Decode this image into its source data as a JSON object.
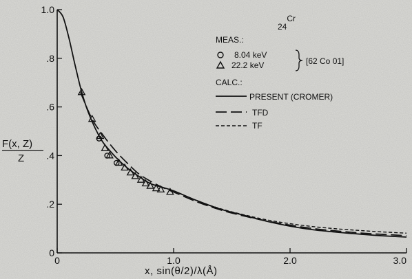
{
  "chart_data": {
    "type": "line",
    "element_label": {
      "sub": "24",
      "sup": "Cr"
    },
    "xlabel": "x, sin(θ/2)/λ(Å)",
    "ylabel": {
      "top": "F(x, Z)",
      "bottom": "Z"
    },
    "xlim": [
      0,
      3.0
    ],
    "ylim": [
      0,
      1.0
    ],
    "x_ticks": [
      0,
      1.0,
      2.0,
      3.0
    ],
    "x_tick_labels": [
      "0",
      "1.0",
      "2.0",
      "3.0"
    ],
    "y_ticks": [
      0,
      0.2,
      0.4,
      0.6,
      0.8,
      1.0
    ],
    "y_tick_labels": [
      "0",
      ".2",
      ".4",
      ".6",
      ".8",
      "1.0"
    ],
    "grid": false,
    "legend_position": "top-right",
    "legend": {
      "meas_title": "MEAS.:",
      "meas_items": [
        {
          "marker": "circle",
          "label": "8.04 keV"
        },
        {
          "marker": "triangle",
          "label": "22.2 keV"
        }
      ],
      "meas_reference": "[62 Co 01]",
      "calc_title": "CALC.:",
      "calc_items": [
        {
          "style": "solid",
          "label": "PRESENT (CROMER)"
        },
        {
          "style": "long-dash",
          "label": "TFD"
        },
        {
          "style": "short-dash",
          "label": "TF"
        }
      ]
    },
    "series": [
      {
        "name": "PRESENT (CROMER)",
        "style": "solid",
        "x": [
          0,
          0.05,
          0.1,
          0.15,
          0.2,
          0.25,
          0.3,
          0.35,
          0.4,
          0.5,
          0.6,
          0.7,
          0.8,
          0.9,
          1.0,
          1.2,
          1.4,
          1.6,
          1.8,
          2.0,
          2.2,
          2.4,
          2.6,
          2.8,
          3.0
        ],
        "y": [
          1.0,
          0.97,
          0.885,
          0.78,
          0.68,
          0.6,
          0.54,
          0.49,
          0.45,
          0.395,
          0.35,
          0.315,
          0.285,
          0.27,
          0.255,
          0.215,
          0.18,
          0.155,
          0.13,
          0.11,
          0.095,
          0.085,
          0.077,
          0.07,
          0.065
        ]
      },
      {
        "name": "TFD",
        "style": "long-dash",
        "x": [
          0.2,
          0.3,
          0.4,
          0.5,
          0.6,
          0.7,
          0.8,
          0.9,
          1.0,
          1.2,
          1.4,
          1.6,
          1.8,
          2.0,
          2.2,
          2.4,
          2.6,
          2.8,
          3.0
        ],
        "y": [
          0.66,
          0.55,
          0.48,
          0.42,
          0.37,
          0.325,
          0.295,
          0.27,
          0.25,
          0.21,
          0.177,
          0.152,
          0.131,
          0.114,
          0.1,
          0.09,
          0.082,
          0.076,
          0.071
        ]
      },
      {
        "name": "TF",
        "style": "short-dash",
        "x": [
          1.0,
          1.2,
          1.4,
          1.6,
          1.8,
          2.0,
          2.2,
          2.4,
          2.6,
          2.8,
          3.0
        ],
        "y": [
          0.255,
          0.215,
          0.182,
          0.157,
          0.136,
          0.12,
          0.108,
          0.099,
          0.092,
          0.086,
          0.081
        ]
      }
    ],
    "measured_points": [
      {
        "x": 0.36,
        "y": 0.47,
        "marker": "circle"
      },
      {
        "x": 0.43,
        "y": 0.4,
        "marker": "circle"
      },
      {
        "x": 0.51,
        "y": 0.37,
        "marker": "circle"
      },
      {
        "x": 0.21,
        "y": 0.66,
        "marker": "triangle"
      },
      {
        "x": 0.3,
        "y": 0.55,
        "marker": "triangle"
      },
      {
        "x": 0.37,
        "y": 0.48,
        "marker": "triangle"
      },
      {
        "x": 0.41,
        "y": 0.43,
        "marker": "triangle"
      },
      {
        "x": 0.45,
        "y": 0.4,
        "marker": "triangle"
      },
      {
        "x": 0.53,
        "y": 0.37,
        "marker": "triangle"
      },
      {
        "x": 0.58,
        "y": 0.35,
        "marker": "triangle"
      },
      {
        "x": 0.63,
        "y": 0.33,
        "marker": "triangle"
      },
      {
        "x": 0.67,
        "y": 0.315,
        "marker": "triangle"
      },
      {
        "x": 0.72,
        "y": 0.3,
        "marker": "triangle"
      },
      {
        "x": 0.76,
        "y": 0.285,
        "marker": "triangle"
      },
      {
        "x": 0.8,
        "y": 0.275,
        "marker": "triangle"
      },
      {
        "x": 0.85,
        "y": 0.265,
        "marker": "triangle"
      },
      {
        "x": 0.89,
        "y": 0.26,
        "marker": "triangle"
      },
      {
        "x": 0.97,
        "y": 0.25,
        "marker": "triangle"
      }
    ]
  }
}
